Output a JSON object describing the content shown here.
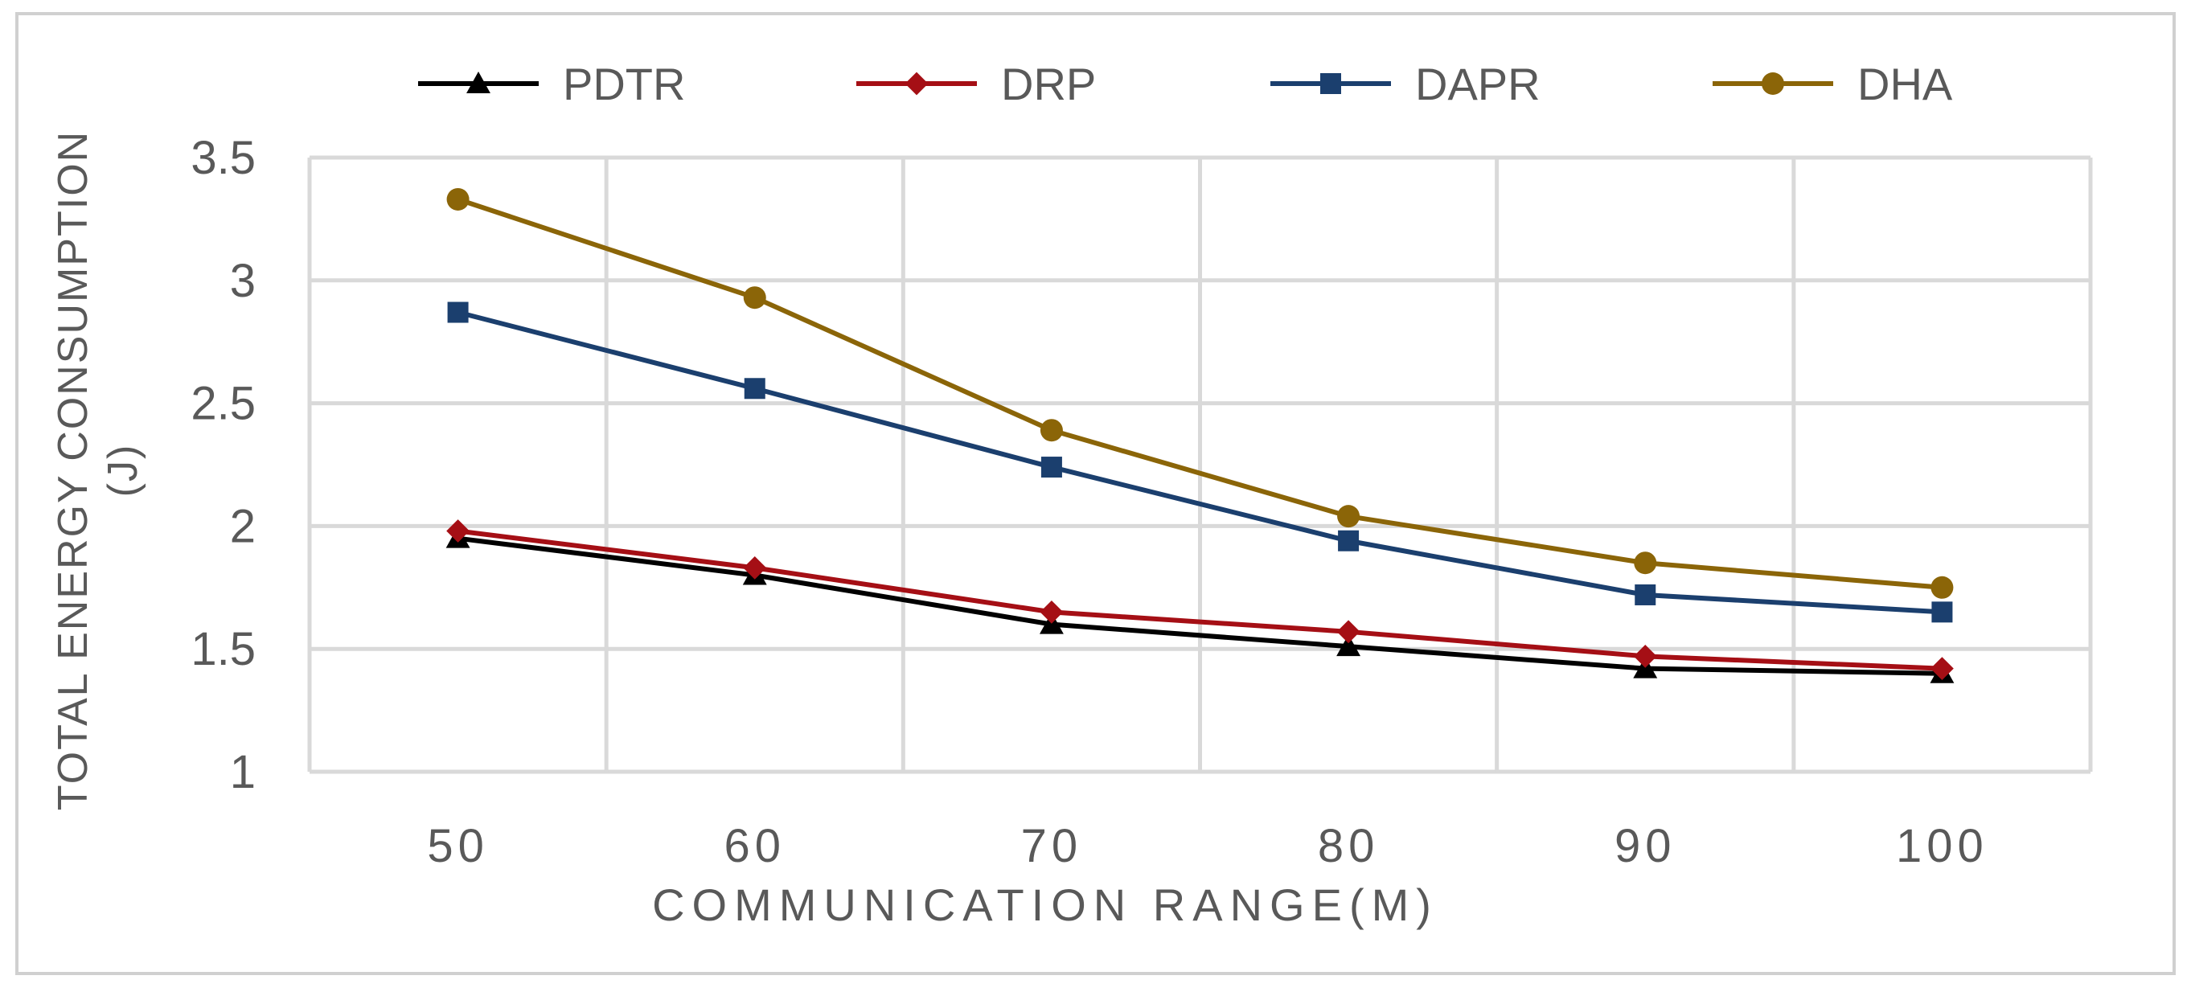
{
  "chart_data": {
    "type": "line",
    "title": "",
    "xlabel": "COMMUNICATION RANGE(M)",
    "ylabel_line1": "TOTAL ENERGY CONSUMPTION",
    "ylabel_line2": "(J)",
    "categories": [
      "50",
      "60",
      "70",
      "80",
      "90",
      "100"
    ],
    "y_ticks": [
      "1",
      "1.5",
      "2",
      "2.5",
      "3",
      "3.5"
    ],
    "ylim": [
      1,
      3.5
    ],
    "grid": true,
    "legend_position": "top",
    "series": [
      {
        "name": "PDTR",
        "color": "#000000",
        "marker": "triangle",
        "values": [
          1.95,
          1.8,
          1.6,
          1.51,
          1.42,
          1.4
        ]
      },
      {
        "name": "DRP",
        "color": "#A50F15",
        "marker": "diamond",
        "values": [
          1.98,
          1.83,
          1.65,
          1.57,
          1.47,
          1.42
        ]
      },
      {
        "name": "DAPR",
        "color": "#1B3F6E",
        "marker": "square",
        "values": [
          2.87,
          2.56,
          2.24,
          1.94,
          1.72,
          1.65
        ]
      },
      {
        "name": "DHA",
        "color": "#8B6508",
        "marker": "circle",
        "values": [
          3.33,
          2.93,
          2.39,
          2.04,
          1.85,
          1.75
        ]
      }
    ]
  }
}
